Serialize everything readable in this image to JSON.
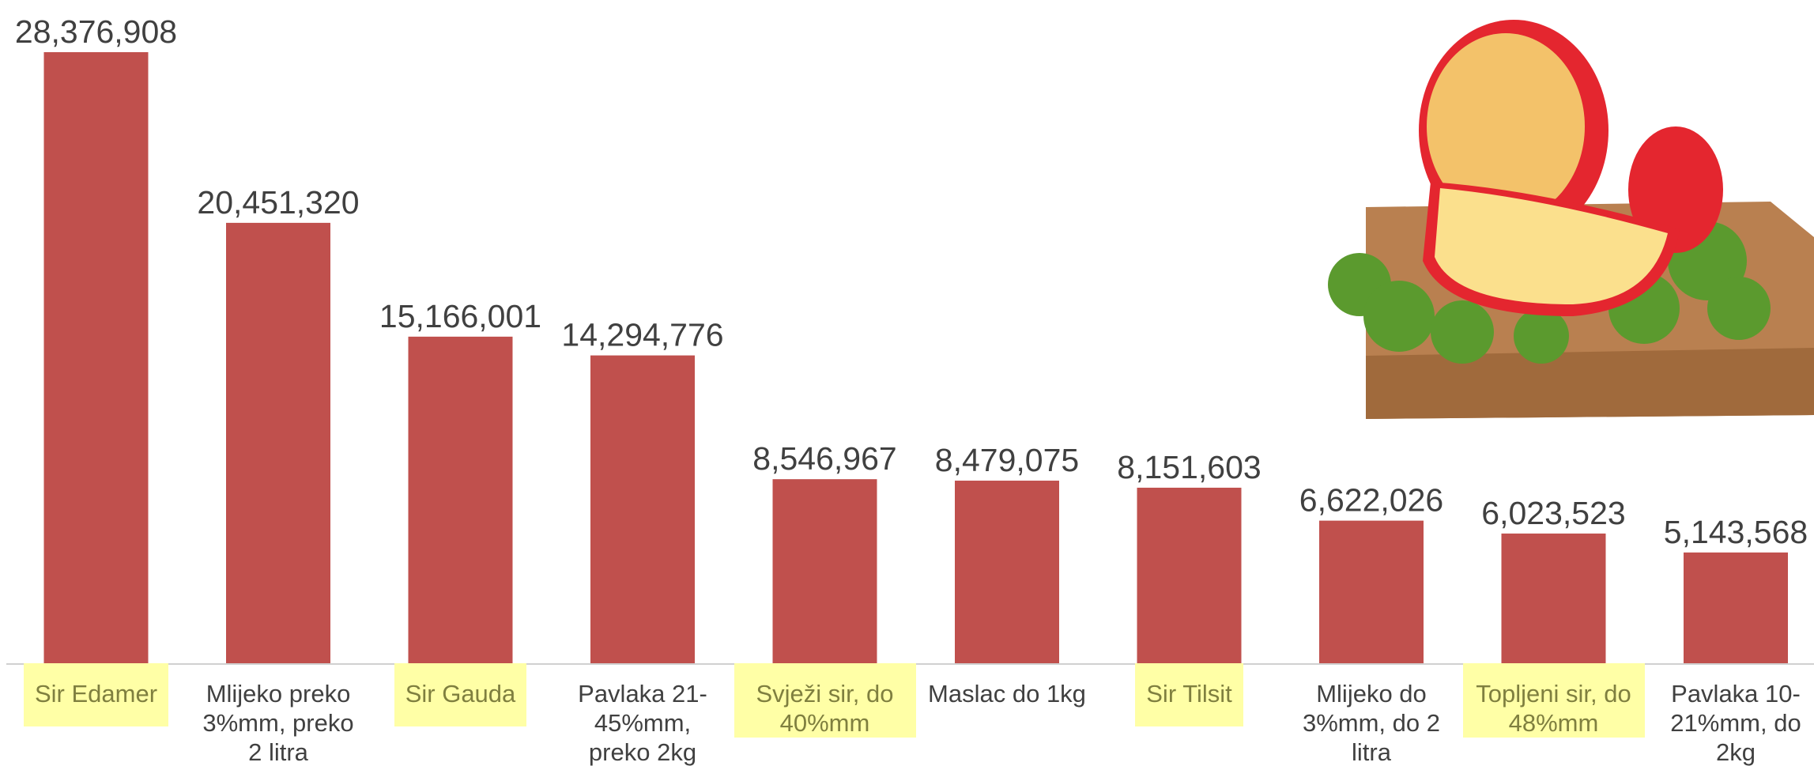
{
  "chart_data": {
    "type": "bar",
    "categories": [
      "Sir Edamer",
      "Mlijeko preko 3%mm, preko 2 litra",
      "Sir Gauda",
      "Pavlaka 21-45%mm, preko 2kg",
      "Svježi sir, do 40%mm",
      "Maslac do 1kg",
      "Sir Tilsit",
      "Mlijeko do 3%mm, do 2 litra",
      "Topljeni sir, do 48%mm",
      "Pavlaka 10-21%mm, do 2kg"
    ],
    "values": [
      28376908,
      20451320,
      15166001,
      14294776,
      8546967,
      8479075,
      8151603,
      6622026,
      6023523,
      5143568
    ],
    "value_labels": [
      "28,376,908",
      "20,451,320",
      "15,166,001",
      "14,294,776",
      "8,546,967",
      "8,479,075",
      "8,151,603",
      "6,622,026",
      "6,023,523",
      "5,143,568"
    ],
    "highlighted": [
      true,
      false,
      true,
      false,
      true,
      false,
      true,
      false,
      true,
      false
    ],
    "color": "#c0504d",
    "highlight_color": "#ffffa6"
  }
}
